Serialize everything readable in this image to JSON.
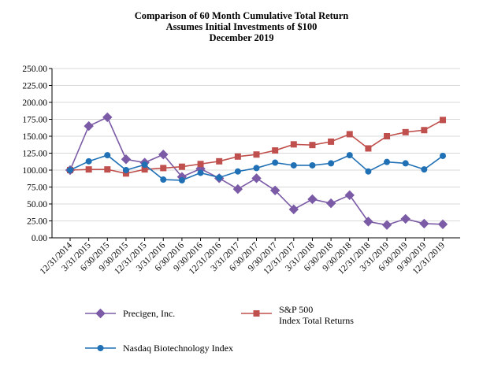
{
  "chart_data": {
    "type": "line",
    "title": [
      "Comparison of 60 Month Cumulative Total Return",
      "Assumes Initial Investments of $100",
      "December 2019"
    ],
    "xlabel": "",
    "ylabel": "",
    "ylim": [
      0,
      250
    ],
    "yticks": [
      "250.00",
      "225.00",
      "200.00",
      "175.00",
      "150.00",
      "125.00",
      "100.00",
      "75.00",
      "50.00",
      "25.00",
      "0.00"
    ],
    "categories": [
      "12/31/2014",
      "3/31/2015",
      "6/30/2015",
      "9/30/2015",
      "12/31/2015",
      "3/31/2016",
      "6/30/2016",
      "9/30/2016",
      "12/31/2016",
      "3/31/2017",
      "6/30/2017",
      "9/30/2017",
      "12/31/2017",
      "3/31/2018",
      "6/30/2018",
      "9/30/2018",
      "12/31/2018",
      "3/31/2019",
      "6/30/2019",
      "9/30/2019",
      "12/31/2019"
    ],
    "grid": true,
    "legend_position": "bottom",
    "series": [
      {
        "name": "Precigen, Inc.",
        "color": "#7b5ba6",
        "marker": "diamond",
        "values": [
          100,
          165,
          178,
          116,
          111,
          123,
          90,
          102,
          88,
          72,
          88,
          70,
          42,
          57,
          51,
          63,
          24,
          19,
          28,
          21,
          20
        ]
      },
      {
        "name": "S&P 500 Index Total Returns",
        "label_lines": [
          "S&P 500",
          "Index Total Returns"
        ],
        "color": "#c0504d",
        "marker": "square",
        "values": [
          100,
          101,
          101,
          95,
          101,
          103,
          105,
          109,
          113,
          120,
          123,
          129,
          138,
          137,
          142,
          153,
          132,
          150,
          156,
          159,
          174
        ]
      },
      {
        "name": "Nasdaq Biotechnology Index",
        "color": "#1f70b5",
        "marker": "circle",
        "values": [
          100,
          113,
          122,
          100,
          108,
          86,
          85,
          96,
          89,
          98,
          103,
          111,
          107,
          107,
          110,
          122,
          98,
          112,
          110,
          101,
          121
        ]
      }
    ]
  }
}
